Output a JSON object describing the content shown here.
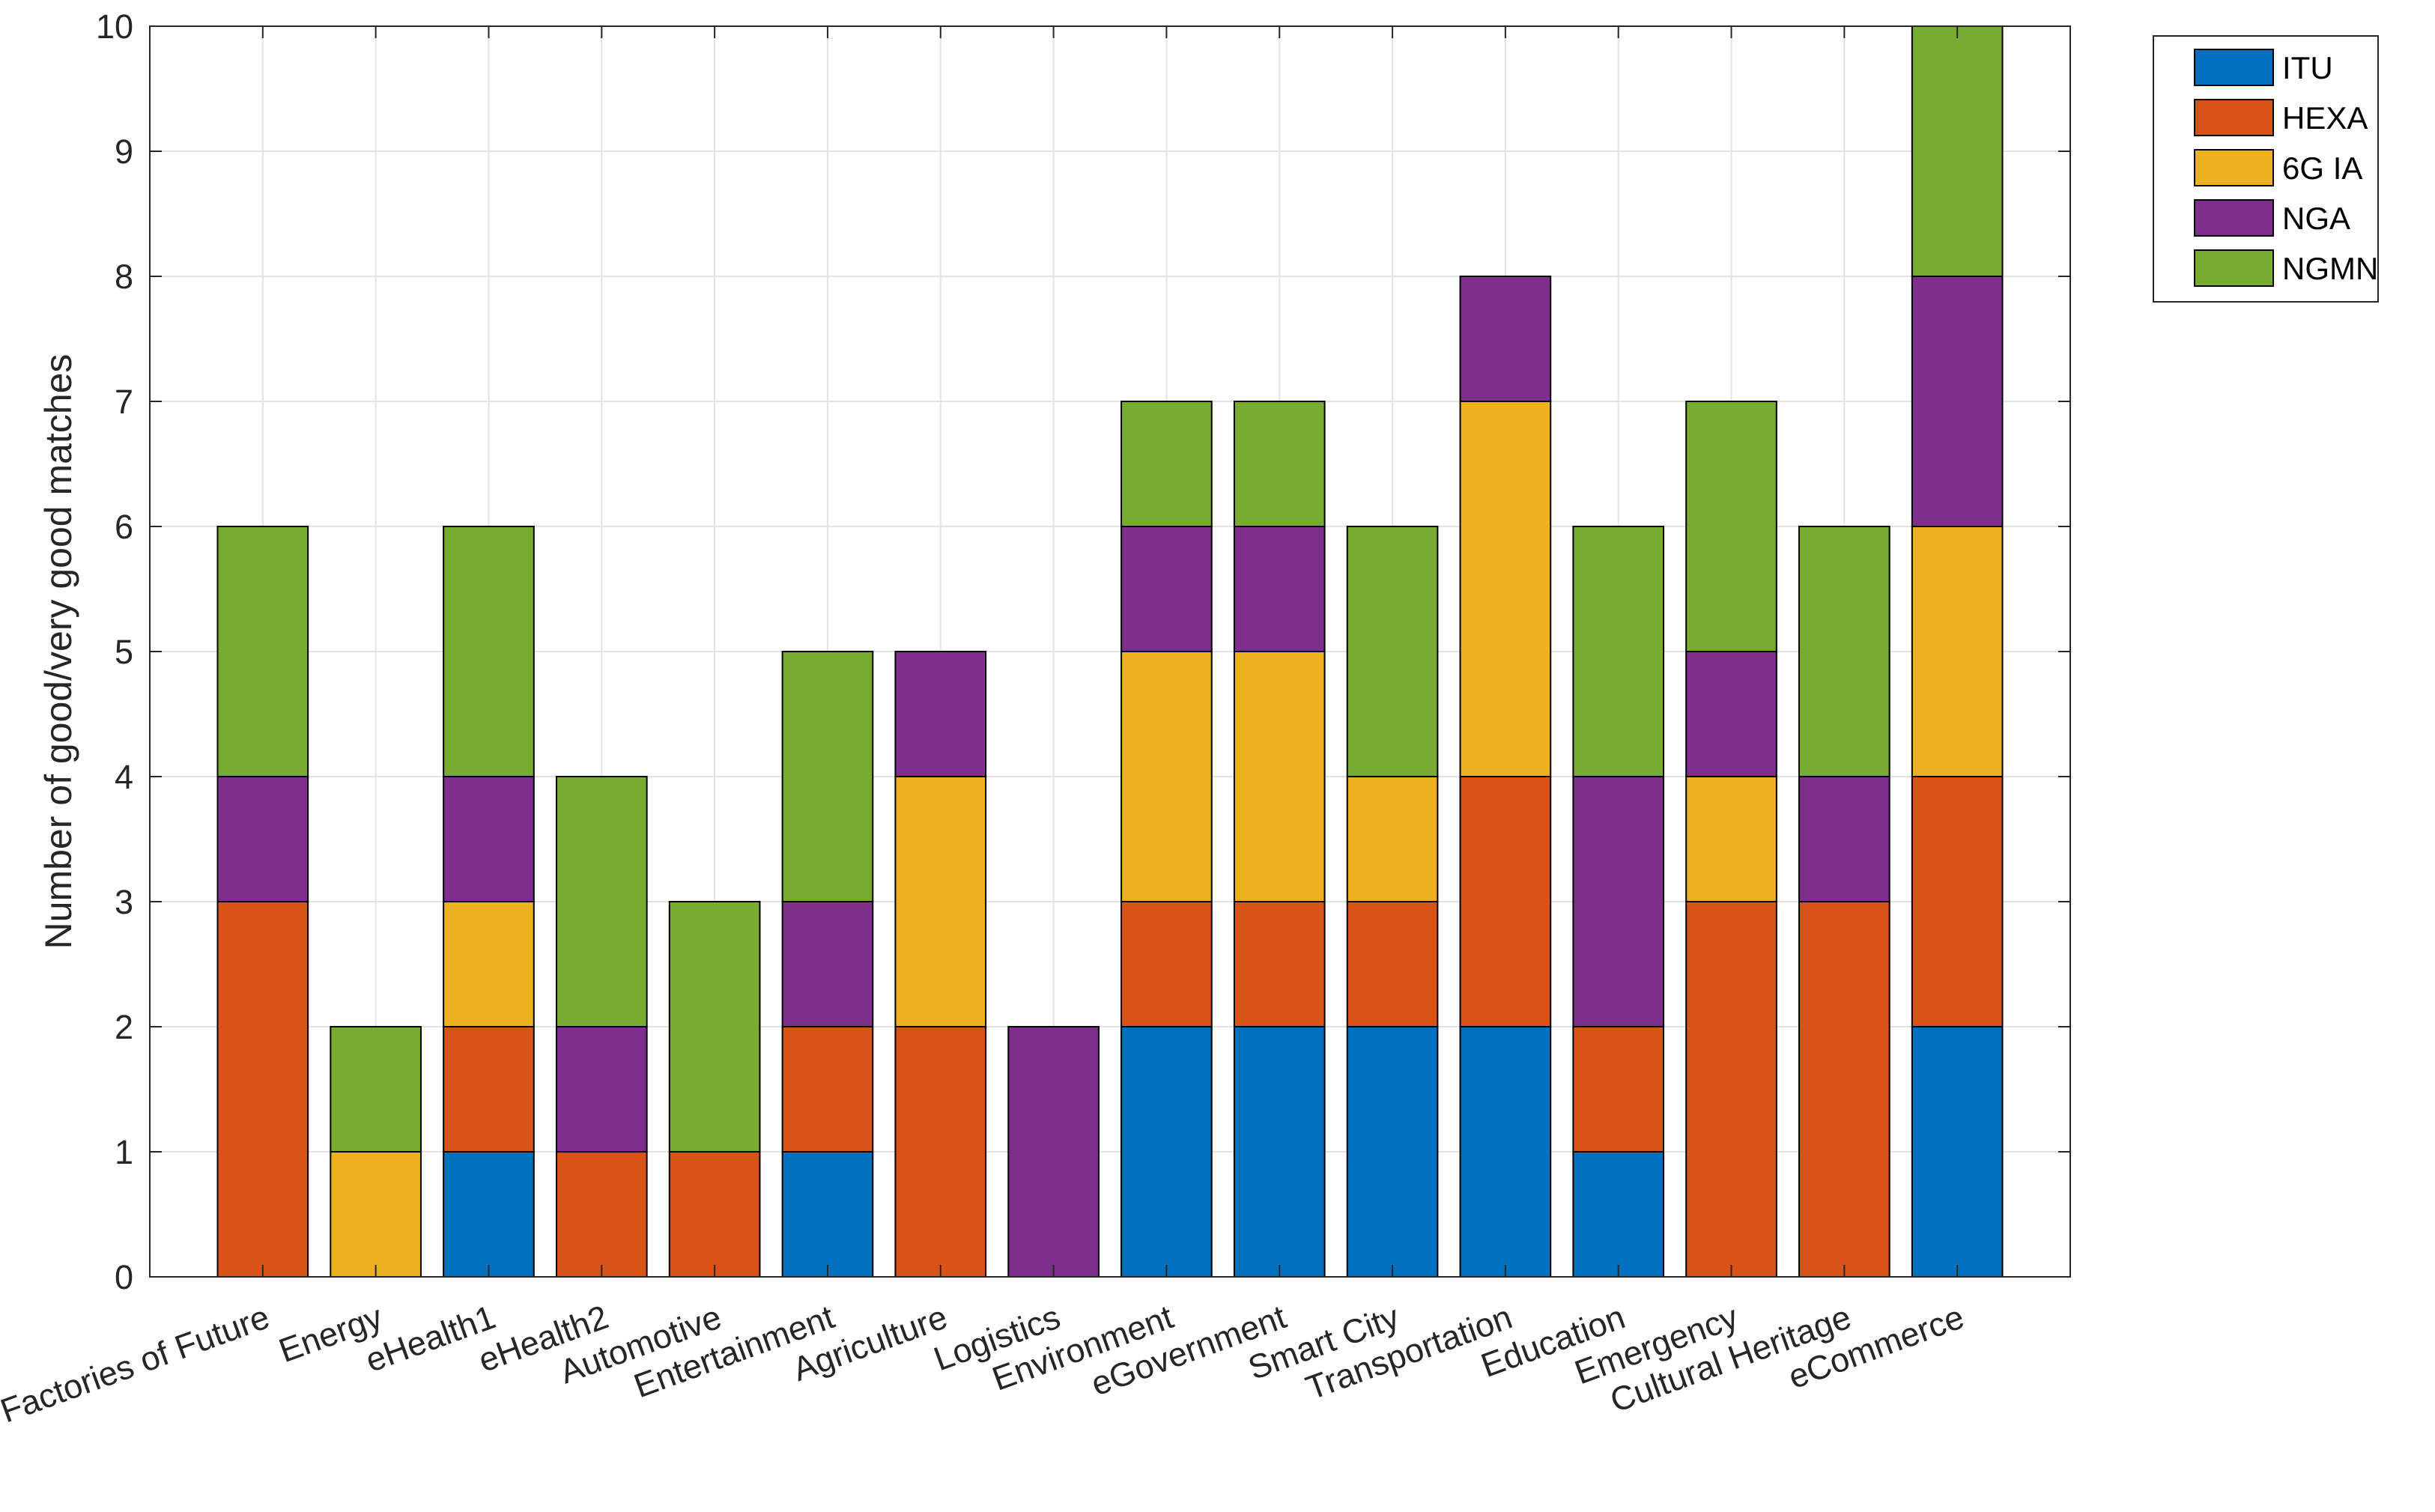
{
  "chart_data": {
    "type": "bar",
    "stacked": true,
    "title": "",
    "xlabel": "",
    "ylabel": "Number of good/very good matches",
    "ylim": [
      0,
      10
    ],
    "yticks": [
      0,
      1,
      2,
      3,
      4,
      5,
      6,
      7,
      8,
      9,
      10
    ],
    "grid": true,
    "legend_position": "outside top-right",
    "categories": [
      "Factories of Future",
      "Energy",
      "eHealth1",
      "eHealth2",
      "Automotive",
      "Entertainment",
      "Agriculture",
      "Logistics",
      "Environment",
      "eGovernment",
      "Smart City",
      "Transportation",
      "Education",
      "Emergency",
      "Cultural Heritage",
      "eCommerce"
    ],
    "series": [
      {
        "name": "ITU",
        "color": "#0072BD",
        "values": [
          0,
          0,
          1,
          0,
          0,
          1,
          0,
          0,
          2,
          2,
          2,
          2,
          1,
          0,
          0,
          2
        ]
      },
      {
        "name": "HEXA",
        "color": "#D95319",
        "values": [
          3,
          0,
          1,
          1,
          1,
          1,
          2,
          0,
          1,
          1,
          1,
          2,
          1,
          3,
          3,
          2
        ]
      },
      {
        "name": "6G IA",
        "color": "#EDB120",
        "values": [
          0,
          1,
          1,
          0,
          0,
          0,
          2,
          0,
          2,
          2,
          1,
          3,
          0,
          1,
          0,
          2
        ]
      },
      {
        "name": "NGA",
        "color": "#7E2F8E",
        "values": [
          1,
          0,
          1,
          1,
          0,
          1,
          1,
          2,
          1,
          1,
          0,
          1,
          2,
          1,
          1,
          2
        ]
      },
      {
        "name": "NGMN",
        "color": "#77AC30",
        "values": [
          2,
          1,
          2,
          2,
          2,
          2,
          0,
          0,
          1,
          1,
          2,
          0,
          2,
          2,
          2,
          2
        ]
      }
    ]
  }
}
